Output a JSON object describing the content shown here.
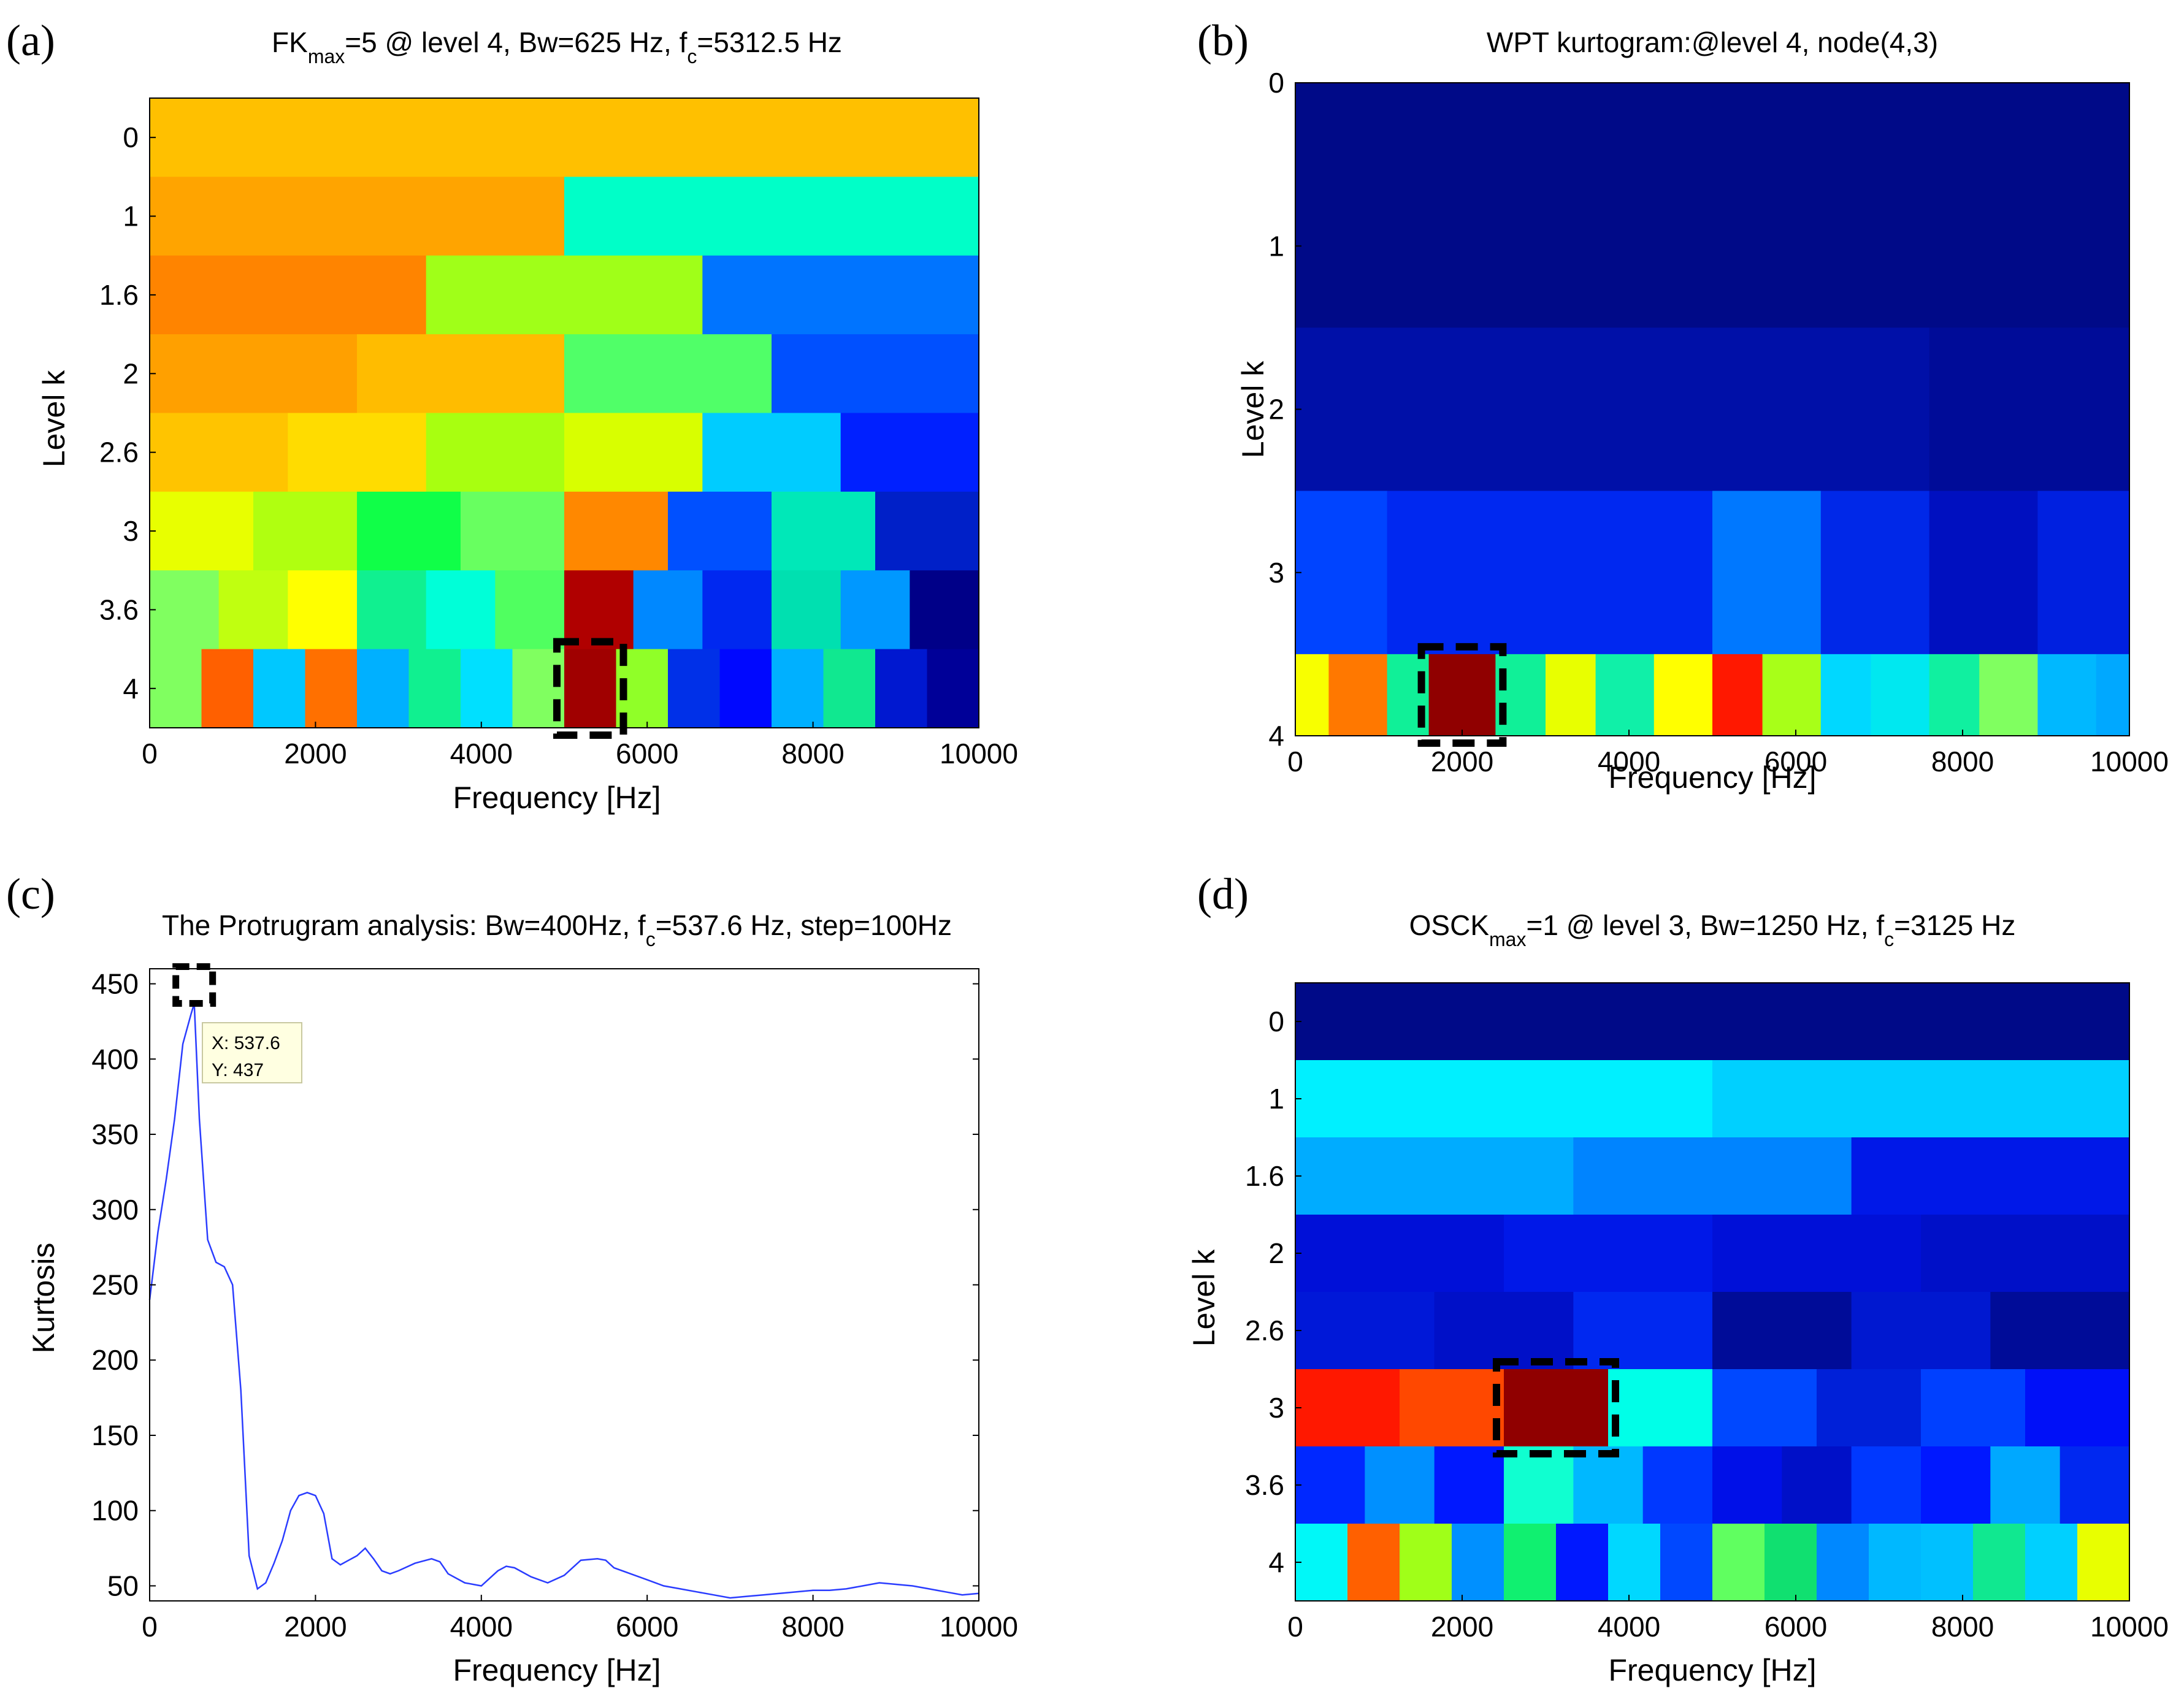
{
  "colors": {
    "frame": "#000000",
    "line": "#2a3cff",
    "highlight": "#000000",
    "tooltip_bg": "#ffffe1"
  },
  "panels": {
    "a": {
      "label": "(a)",
      "title_pre": "FK",
      "title_sub": "max",
      "title_post": "=5 @ level 4, Bw=625 Hz, f",
      "title_sub2": "c",
      "title_end": "=5312.5 Hz",
      "xlabel": "Frequency [Hz]",
      "ylabel": "Level k"
    },
    "b": {
      "label": "(b)",
      "title": "WPT kurtogram:@level 4, node(4,3)",
      "xlabel": "Frequency [Hz]",
      "ylabel": "Level k"
    },
    "c": {
      "label": "(c)",
      "title_pre": "The Protrugram analysis: Bw=400Hz, f",
      "title_sub": "c",
      "title_post": "=537.6 Hz, step=100Hz",
      "xlabel": "Frequency [Hz]",
      "ylabel": "Kurtosis",
      "tooltip_x": "X: 537.6",
      "tooltip_y": "Y: 437"
    },
    "d": {
      "label": "(d)",
      "title_pre": "OSCK",
      "title_sub": "max",
      "title_post": "=1 @ level 3, Bw=1250 Hz, f",
      "title_sub2": "c",
      "title_end": "=3125 Hz",
      "xlabel": "Frequency [Hz]",
      "ylabel": "Level k"
    }
  },
  "chart_data": [
    {
      "id": "a",
      "type": "heatmap",
      "xlim": [
        0,
        10000
      ],
      "xticks": [
        "0",
        "2000",
        "4000",
        "6000",
        "8000",
        "10000"
      ],
      "yticks": [
        "0",
        "1",
        "1.6",
        "2",
        "2.6",
        "3",
        "3.6",
        "4"
      ],
      "rows": [
        {
          "level": "0",
          "cells": [
            "#ffc000"
          ]
        },
        {
          "level": "1",
          "cells": [
            "#ffa400",
            "#00ffc8"
          ]
        },
        {
          "level": "1.6",
          "cells": [
            "#ff8400",
            "#a0ff18",
            "#0074ff"
          ]
        },
        {
          "level": "2",
          "cells": [
            "#ffa000",
            "#ffbc00",
            "#50ff68",
            "#0050ff"
          ]
        },
        {
          "level": "2.6",
          "cells": [
            "#ffc400",
            "#ffdc00",
            "#a8ff10",
            "#d8ff00",
            "#00ccff",
            "#0020ff"
          ]
        },
        {
          "level": "3",
          "cells": [
            "#e8ff00",
            "#b0ff10",
            "#10ff48",
            "#68ff60",
            "#ff8800",
            "#0050ff",
            "#00e8b8",
            "#0020c8"
          ]
        },
        {
          "level": "3.6",
          "cells": [
            "#80ff60",
            "#c0ff10",
            "#ffff00",
            "#10f090",
            "#00ffd8",
            "#50ff60",
            "#b00000",
            "#0088ff",
            "#0028f0",
            "#00e0b0",
            "#0098ff",
            "#000088"
          ]
        },
        {
          "level": "4",
          "cells": [
            "#80ff60",
            "#ff6000",
            "#00c8ff",
            "#ff7000",
            "#00b0ff",
            "#10f090",
            "#00e0ff",
            "#80ff60",
            "#a00000",
            "#90ff28",
            "#0030e8",
            "#0008ff",
            "#00b0ff",
            "#10e890",
            "#0018d0",
            "#000098"
          ]
        }
      ],
      "highlight": {
        "row": "4",
        "x_from": 5000,
        "x_to": 5625
      }
    },
    {
      "id": "b",
      "type": "heatmap",
      "xlim": [
        0,
        10000
      ],
      "ylim": [
        0,
        4
      ],
      "xticks": [
        "0",
        "2000",
        "4000",
        "6000",
        "8000",
        "10000"
      ],
      "yticks": [
        "0",
        "1",
        "2",
        "3",
        "4"
      ],
      "bands": [
        {
          "y": [
            0,
            1.5
          ],
          "cells": [
            {
              "x": [
                0,
                10000
              ],
              "c": "#000a88"
            }
          ]
        },
        {
          "y": [
            1.5,
            2.5
          ],
          "cells": [
            {
              "x": [
                0,
                7600
              ],
              "c": "#0010a8"
            },
            {
              "x": [
                7600,
                10000
              ],
              "c": "#000c98"
            }
          ]
        },
        {
          "y": [
            2.5,
            3.5
          ],
          "cells": [
            {
              "x": [
                0,
                1100
              ],
              "c": "#0044ff"
            },
            {
              "x": [
                1100,
                5000
              ],
              "c": "#0028f0"
            },
            {
              "x": [
                5000,
                6300
              ],
              "c": "#0078ff"
            },
            {
              "x": [
                6300,
                7600
              ],
              "c": "#0028e8"
            },
            {
              "x": [
                7600,
                8900
              ],
              "c": "#0010c0"
            },
            {
              "x": [
                8900,
                10000
              ],
              "c": "#0020e0"
            }
          ]
        },
        {
          "y": [
            3.5,
            4
          ],
          "cells": [
            {
              "x": [
                0,
                400
              ],
              "c": "#f8ff00"
            },
            {
              "x": [
                400,
                1100
              ],
              "c": "#ff7800"
            },
            {
              "x": [
                1100,
                1600
              ],
              "c": "#10f098"
            },
            {
              "x": [
                1600,
                2400
              ],
              "c": "#900000"
            },
            {
              "x": [
                2400,
                3000
              ],
              "c": "#10f098"
            },
            {
              "x": [
                3000,
                3600
              ],
              "c": "#e8ff00"
            },
            {
              "x": [
                3600,
                4300
              ],
              "c": "#10f0a8"
            },
            {
              "x": [
                4300,
                5000
              ],
              "c": "#ffff00"
            },
            {
              "x": [
                5000,
                5600
              ],
              "c": "#ff1800"
            },
            {
              "x": [
                5600,
                6300
              ],
              "c": "#a8ff18"
            },
            {
              "x": [
                6300,
                6900
              ],
              "c": "#00d8ff"
            },
            {
              "x": [
                6900,
                7600
              ],
              "c": "#00e8f0"
            },
            {
              "x": [
                7600,
                8200
              ],
              "c": "#10f0a0"
            },
            {
              "x": [
                8200,
                8900
              ],
              "c": "#80ff60"
            },
            {
              "x": [
                8900,
                9600
              ],
              "c": "#00b8ff"
            },
            {
              "x": [
                9600,
                10000
              ],
              "c": "#00a8ff"
            }
          ]
        }
      ],
      "highlight": {
        "y": [
          3.5,
          4
        ],
        "x_from": 1600,
        "x_to": 2400
      }
    },
    {
      "id": "c",
      "type": "line",
      "xlim": [
        0,
        10000
      ],
      "ylim": [
        40,
        460
      ],
      "xticks": [
        0,
        2000,
        4000,
        6000,
        8000,
        10000
      ],
      "yticks": [
        50,
        100,
        150,
        200,
        250,
        300,
        350,
        400,
        450
      ],
      "series": [
        {
          "x": [
            0,
            100,
            200,
            300,
            400,
            500,
            537.6,
            600,
            700,
            800,
            900,
            1000,
            1100,
            1200,
            1300,
            1400,
            1500,
            1600,
            1700,
            1800,
            1900,
            2000,
            2100,
            2200,
            2300,
            2400,
            2500,
            2600,
            2700,
            2800,
            2900,
            3000,
            3200,
            3400,
            3500,
            3600,
            3800,
            4000,
            4100,
            4200,
            4300,
            4400,
            4600,
            4800,
            5000,
            5200,
            5400,
            5500,
            5600,
            5800,
            6000,
            6200,
            6400,
            6600,
            6800,
            7000,
            7200,
            7400,
            7600,
            7800,
            8000,
            8200,
            8400,
            8600,
            8800,
            9000,
            9200,
            9400,
            9600,
            9800,
            10000
          ],
          "y": [
            240,
            285,
            320,
            360,
            410,
            430,
            437,
            360,
            280,
            265,
            262,
            250,
            180,
            70,
            48,
            52,
            65,
            80,
            100,
            110,
            112,
            110,
            98,
            68,
            64,
            67,
            70,
            75,
            68,
            60,
            58,
            60,
            65,
            68,
            66,
            58,
            52,
            50,
            55,
            60,
            63,
            62,
            56,
            52,
            57,
            67,
            68,
            67,
            62,
            58,
            54,
            50,
            48,
            46,
            44,
            42,
            43,
            44,
            45,
            46,
            47,
            47,
            48,
            50,
            52,
            51,
            50,
            48,
            46,
            44,
            45
          ]
        }
      ],
      "peak": {
        "x": 537.6,
        "y": 437
      }
    },
    {
      "id": "d",
      "type": "heatmap",
      "xlim": [
        0,
        10000
      ],
      "xticks": [
        "0",
        "2000",
        "4000",
        "6000",
        "8000",
        "10000"
      ],
      "yticks": [
        "0",
        "1",
        "1.6",
        "2",
        "2.6",
        "3",
        "3.6",
        "4"
      ],
      "rows": [
        {
          "level": "0",
          "cells": [
            "#000a88"
          ]
        },
        {
          "level": "1",
          "cells": [
            "#00f0ff",
            "#00d0ff"
          ]
        },
        {
          "level": "1.6",
          "cells": [
            "#00acff",
            "#0084ff",
            "#0018e8"
          ]
        },
        {
          "level": "2",
          "cells": [
            "#0010d8",
            "#0018e8",
            "#0010d8",
            "#0010c8"
          ]
        },
        {
          "level": "2.6",
          "cells": [
            "#0018d8",
            "#0010c8",
            "#0028f0",
            "#000c98",
            "#0018d0",
            "#000c98"
          ]
        },
        {
          "level": "3",
          "cells": [
            "#ff1800",
            "#ff4800",
            "#900000",
            "#00ffe8",
            "#0048ff",
            "#0020d8",
            "#0040ff",
            "#0010f8"
          ]
        },
        {
          "level": "3.6",
          "cells": [
            "#0028ff",
            "#0090ff",
            "#0018ff",
            "#10ffd0",
            "#00b8ff",
            "#0038ff",
            "#0010e8",
            "#0010c8",
            "#0038ff",
            "#0018ff",
            "#00a8ff",
            "#0028f0"
          ]
        },
        {
          "level": "4",
          "cells": [
            "#00f8f8",
            "#ff6000",
            "#a0ff18",
            "#0090ff",
            "#10f070",
            "#0018ff",
            "#00d8ff",
            "#0048ff",
            "#60ff60",
            "#10e070",
            "#0088ff",
            "#00b8ff",
            "#00c0ff",
            "#10e890",
            "#00d0ff",
            "#e8ff00"
          ]
        }
      ],
      "highlight": {
        "row": "3",
        "x_from": 2500,
        "x_to": 3750
      }
    }
  ]
}
